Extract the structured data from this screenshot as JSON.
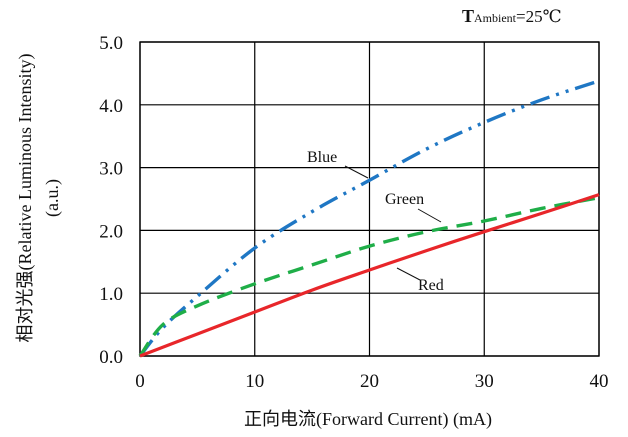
{
  "chart_data": {
    "type": "line",
    "title": "",
    "annotation": {
      "prefix": "T",
      "sub": "Ambient",
      "suffix": "=25℃"
    },
    "xlabel": "正向电流(Forward Current) (mA)",
    "ylabel": "相对光强(Relative Luminous Intensity)",
    "ylabel2": "(a.u.)",
    "xlim": [
      0,
      40
    ],
    "ylim": [
      0,
      5
    ],
    "x_ticks": [
      "0",
      "10",
      "20",
      "30",
      "40"
    ],
    "y_ticks": [
      "0.0",
      "1.0",
      "2.0",
      "3.0",
      "4.0",
      "5.0"
    ],
    "grid": true,
    "series": [
      {
        "name": "Blue",
        "color": "#1f77c4",
        "style": "dash-dot-dot",
        "x": [
          0,
          2,
          5,
          10,
          15,
          20,
          25,
          30,
          35,
          40
        ],
        "y": [
          0,
          0.45,
          0.95,
          1.72,
          2.3,
          2.8,
          3.3,
          3.72,
          4.08,
          4.38
        ]
      },
      {
        "name": "Green",
        "color": "#1fae48",
        "style": "dash",
        "x": [
          0,
          2,
          5,
          10,
          15,
          20,
          25,
          30,
          35,
          40
        ],
        "y": [
          0,
          0.5,
          0.8,
          1.15,
          1.45,
          1.75,
          1.98,
          2.15,
          2.35,
          2.52
        ]
      },
      {
        "name": "Red",
        "color": "#e8262a",
        "style": "solid",
        "x": [
          0,
          5,
          10,
          15,
          20,
          25,
          30,
          35,
          40
        ],
        "y": [
          0,
          0.35,
          0.7,
          1.05,
          1.37,
          1.68,
          1.98,
          2.27,
          2.57
        ]
      }
    ]
  }
}
